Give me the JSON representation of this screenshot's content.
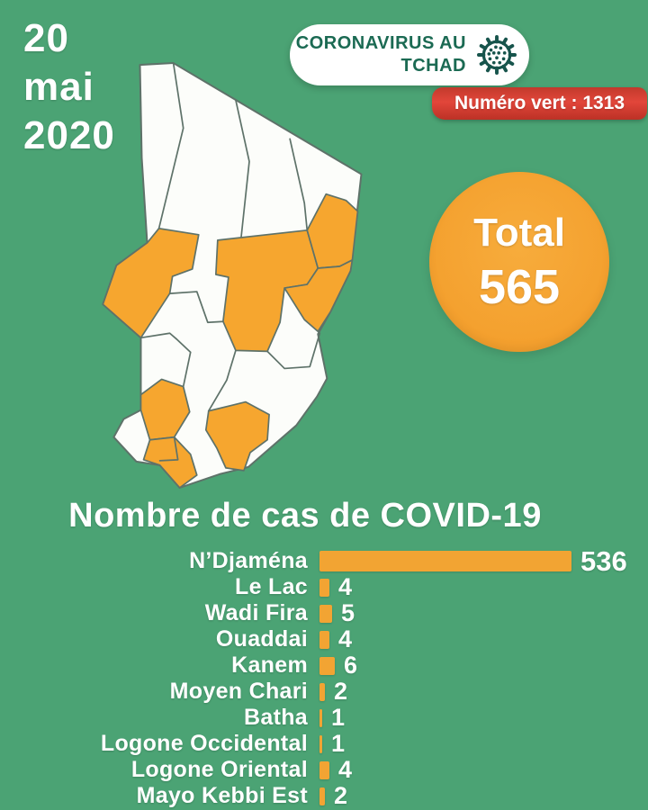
{
  "date": {
    "day": "20",
    "month": "mai",
    "year": "2020"
  },
  "header": {
    "badge_line1": "CORONAVIRUS AU",
    "badge_line2": "TCHAD",
    "hotline": "Numéro vert : 1313"
  },
  "total_badge": {
    "label": "Total",
    "value": "565"
  },
  "map": {
    "description": "carte des régions du Tchad",
    "highlight_color": "#F6A62F",
    "region_fill": "#FCFDFA",
    "border_color": "#5E7269"
  },
  "chart_data": {
    "type": "bar",
    "orientation": "horizontal",
    "title": "Nombre de cas de COVID-19",
    "categories": [
      "N’Djaména",
      "Le Lac",
      "Wadi Fira",
      "Ouaddai",
      "Kanem",
      "Moyen Chari",
      "Batha",
      "Logone Occidental",
      "Logone Oriental",
      "Mayo Kebbi Est"
    ],
    "values": [
      536,
      4,
      5,
      4,
      6,
      2,
      1,
      1,
      4,
      2
    ],
    "total": 565,
    "xlim": [
      0,
      536
    ],
    "bar_color": "#F2A433",
    "value_label_color": "#FFFFFF",
    "legend": "none",
    "grid": false
  },
  "colors": {
    "background": "#4BA374",
    "badge_text_green": "#1B6A53",
    "hotline_red": "#D5392C",
    "accent_orange": "#F2A433",
    "text": "#FFFFFF"
  }
}
